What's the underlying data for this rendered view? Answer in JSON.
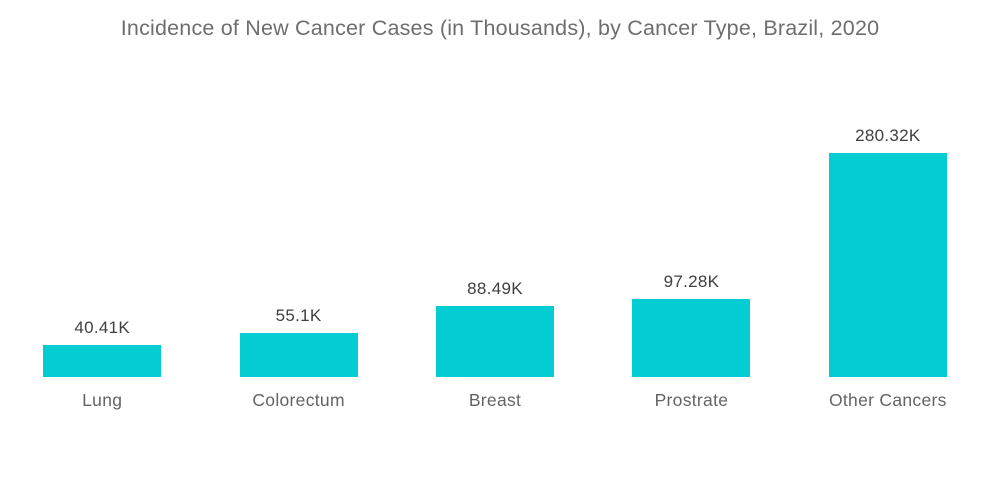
{
  "title": "Incidence of New Cancer Cases (in Thousands), by Cancer Type, Brazil, 2020",
  "chart_data": {
    "type": "bar",
    "title": "Incidence of New Cancer Cases (in Thousands), by Cancer Type, Brazil, 2020",
    "categories": [
      "Lung",
      "Colorectum",
      "Breast",
      "Prostrate",
      "Other Cancers"
    ],
    "values": [
      40.41,
      55.1,
      88.49,
      97.28,
      280.32
    ],
    "value_labels": [
      "40.41K",
      "55.1K",
      "88.49K",
      "97.28K",
      "280.32K"
    ],
    "unit": "Thousands of new cancer cases",
    "xlabel": "",
    "ylabel": "",
    "ylim": [
      0,
      300
    ],
    "grid": false,
    "legend": false,
    "orientation": "vertical",
    "bar_color": "#03cdd3",
    "value_label_color": "#3f4040",
    "category_label_color": "#636466",
    "title_color": "#6d6e70",
    "background_color": "#ffffff"
  }
}
